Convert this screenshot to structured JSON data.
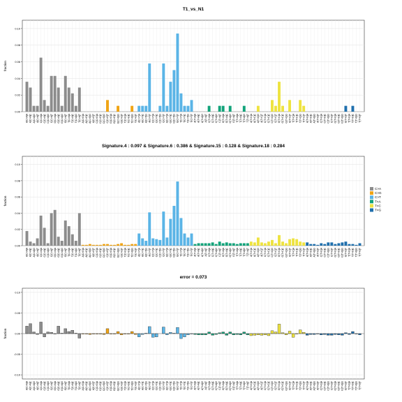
{
  "colors": {
    "C>A": "#8c8c8c",
    "C>G": "#f0a414",
    "C>T": "#5ab4e6",
    "T>A": "#12a37a",
    "T>C": "#eee340",
    "T>G": "#1f6fad"
  },
  "legend": {
    "items": [
      "C>A",
      "C>G",
      "C>T",
      "T>A",
      "T>C",
      "T>G"
    ]
  },
  "contexts": [
    "A[C>A]A",
    "A[C>A]C",
    "A[C>A]G",
    "A[C>A]T",
    "C[C>A]A",
    "C[C>A]C",
    "C[C>A]G",
    "C[C>A]T",
    "G[C>A]A",
    "G[C>A]C",
    "G[C>A]G",
    "G[C>A]T",
    "T[C>A]A",
    "T[C>A]C",
    "T[C>A]G",
    "T[C>A]T",
    "A[C>G]A",
    "A[C>G]C",
    "A[C>G]G",
    "A[C>G]T",
    "C[C>G]A",
    "C[C>G]C",
    "C[C>G]G",
    "C[C>G]T",
    "G[C>G]A",
    "G[C>G]C",
    "G[C>G]G",
    "G[C>G]T",
    "T[C>G]A",
    "T[C>G]C",
    "T[C>G]G",
    "T[C>G]T",
    "A[C>T]A",
    "A[C>T]C",
    "A[C>T]G",
    "A[C>T]T",
    "C[C>T]A",
    "C[C>T]C",
    "C[C>T]G",
    "C[C>T]T",
    "G[C>T]A",
    "G[C>T]C",
    "G[C>T]G",
    "G[C>T]T",
    "T[C>T]A",
    "T[C>T]C",
    "T[C>T]G",
    "T[C>T]T",
    "A[T>A]A",
    "A[T>A]C",
    "A[T>A]G",
    "A[T>A]T",
    "C[T>A]A",
    "C[T>A]C",
    "C[T>A]G",
    "C[T>A]T",
    "G[T>A]A",
    "G[T>A]C",
    "G[T>A]G",
    "G[T>A]T",
    "T[T>A]A",
    "T[T>A]C",
    "T[T>A]G",
    "T[T>A]T",
    "A[T>C]A",
    "A[T>C]C",
    "A[T>C]G",
    "A[T>C]T",
    "C[T>C]A",
    "C[T>C]C",
    "C[T>C]G",
    "C[T>C]T",
    "G[T>C]A",
    "G[T>C]C",
    "G[T>C]G",
    "G[T>C]T",
    "T[T>C]A",
    "T[T>C]C",
    "T[T>C]G",
    "T[T>C]T",
    "A[T>G]A",
    "A[T>G]C",
    "A[T>G]G",
    "A[T>G]T",
    "C[T>G]A",
    "C[T>G]C",
    "C[T>G]G",
    "C[T>G]T",
    "G[T>G]A",
    "G[T>G]C",
    "G[T>G]G",
    "G[T>G]T",
    "T[T>G]A",
    "T[T>G]C",
    "T[T>G]G",
    "T[T>G]T"
  ],
  "chart_data": [
    {
      "type": "bar",
      "title": "T1_vs_N1",
      "ylabel": "fraction",
      "ylim": [
        0,
        0.11
      ],
      "yticks": [
        0.0,
        0.02,
        0.04,
        0.06,
        0.08,
        0.1
      ],
      "ytick_labels": [
        "0.00",
        "0.02",
        "0.04",
        "0.06",
        "0.08",
        "0.10"
      ],
      "grid": true,
      "categories_ref": "contexts",
      "values": [
        0.036,
        0.029,
        0.007,
        0.007,
        0.065,
        0.014,
        0.007,
        0.043,
        0.043,
        0.029,
        0.007,
        0.043,
        0.029,
        0.022,
        0.007,
        0.029,
        0,
        0,
        0,
        0,
        0,
        0,
        0,
        0.014,
        0,
        0,
        0.007,
        0,
        0,
        0,
        0.007,
        0,
        0.007,
        0.007,
        0.007,
        0.058,
        0,
        0,
        0.007,
        0.058,
        0.007,
        0.036,
        0.05,
        0.094,
        0.022,
        0.007,
        0.007,
        0.014,
        0,
        0,
        0,
        0,
        0.007,
        0,
        0,
        0.007,
        0.007,
        0,
        0.007,
        0,
        0,
        0,
        0.007,
        0,
        0,
        0,
        0.007,
        0,
        0,
        0,
        0.014,
        0.007,
        0.036,
        0.007,
        0,
        0.014,
        0,
        0,
        0.014,
        0.007,
        0,
        0,
        0,
        0,
        0,
        0,
        0,
        0,
        0,
        0,
        0,
        0.007,
        0,
        0.007,
        0,
        0
      ]
    },
    {
      "type": "bar",
      "title": "Signature.4 : 0.097 & Signature.6 : 0.386 & Signature.15 : 0.128 & Signature.18 : 0.284",
      "ylabel": "fraction",
      "ylim": [
        0,
        0.11
      ],
      "yticks": [
        0.0,
        0.02,
        0.04,
        0.06,
        0.08,
        0.1
      ],
      "ytick_labels": [
        "0.00",
        "0.02",
        "0.04",
        "0.06",
        "0.08",
        "0.10"
      ],
      "grid": true,
      "categories_ref": "contexts",
      "values": [
        0.018,
        0.005,
        0.003,
        0.009,
        0.037,
        0.022,
        0.003,
        0.04,
        0.044,
        0.011,
        0.006,
        0.031,
        0.024,
        0.014,
        0.006,
        0.04,
        0.001,
        0.001,
        0.002,
        0.001,
        0.001,
        0.001,
        0.002,
        0.002,
        0.001,
        0.001,
        0.002,
        0.003,
        0.001,
        0.001,
        0.002,
        0.002,
        0.015,
        0.009,
        0.006,
        0.041,
        0.009,
        0.008,
        0.007,
        0.042,
        0.01,
        0.033,
        0.049,
        0.079,
        0.034,
        0.015,
        0.01,
        0.015,
        0.002,
        0.003,
        0.003,
        0.003,
        0.003,
        0.004,
        0.002,
        0.005,
        0.003,
        0.004,
        0.003,
        0.003,
        0.002,
        0.003,
        0.003,
        0.003,
        0.005,
        0.004,
        0.01,
        0.004,
        0.003,
        0.005,
        0.007,
        0.003,
        0.013,
        0.005,
        0.003,
        0.008,
        0.009,
        0.008,
        0.005,
        0.004,
        0.004,
        0.002,
        0.002,
        0.001,
        0.003,
        0.002,
        0.004,
        0.004,
        0.002,
        0.003,
        0.004,
        0.005,
        0.002,
        0.002,
        0.001,
        0.003
      ]
    },
    {
      "type": "bar",
      "title": "error = 0.073",
      "ylabel": "fraction",
      "ylim": [
        -0.11,
        0.11
      ],
      "yticks": [
        -0.1,
        -0.05,
        0.0,
        0.05,
        0.1
      ],
      "ytick_labels": [
        "-0.10",
        "-0.05",
        "0.00",
        "0.05",
        "0.10"
      ],
      "grid": true,
      "categories_ref": "contexts",
      "values": [
        0.018,
        0.024,
        0.004,
        -0.002,
        0.028,
        -0.008,
        0.004,
        0.003,
        -0.001,
        0.018,
        0.001,
        0.012,
        0.005,
        0.008,
        0.001,
        -0.011,
        -0.001,
        -0.001,
        -0.002,
        -0.001,
        -0.001,
        -0.001,
        -0.002,
        0.012,
        -0.001,
        -0.001,
        0.005,
        -0.003,
        -0.001,
        -0.001,
        0.005,
        -0.002,
        -0.008,
        -0.002,
        0.001,
        0.017,
        -0.009,
        -0.008,
        0.0,
        0.016,
        -0.003,
        0.003,
        0.001,
        0.015,
        -0.012,
        -0.008,
        -0.003,
        -0.001,
        -0.002,
        -0.003,
        -0.003,
        -0.003,
        0.004,
        -0.004,
        -0.002,
        0.002,
        0.004,
        -0.004,
        0.004,
        -0.003,
        -0.002,
        -0.003,
        0.004,
        -0.003,
        -0.005,
        -0.004,
        -0.003,
        -0.004,
        -0.003,
        -0.005,
        0.007,
        0.004,
        0.023,
        0.002,
        -0.003,
        0.006,
        -0.009,
        -0.001,
        0.009,
        0.003,
        -0.004,
        -0.002,
        -0.002,
        -0.001,
        -0.003,
        -0.002,
        -0.004,
        -0.004,
        -0.002,
        -0.003,
        -0.004,
        0.002,
        -0.002,
        0.005,
        -0.001,
        -0.003
      ]
    }
  ]
}
